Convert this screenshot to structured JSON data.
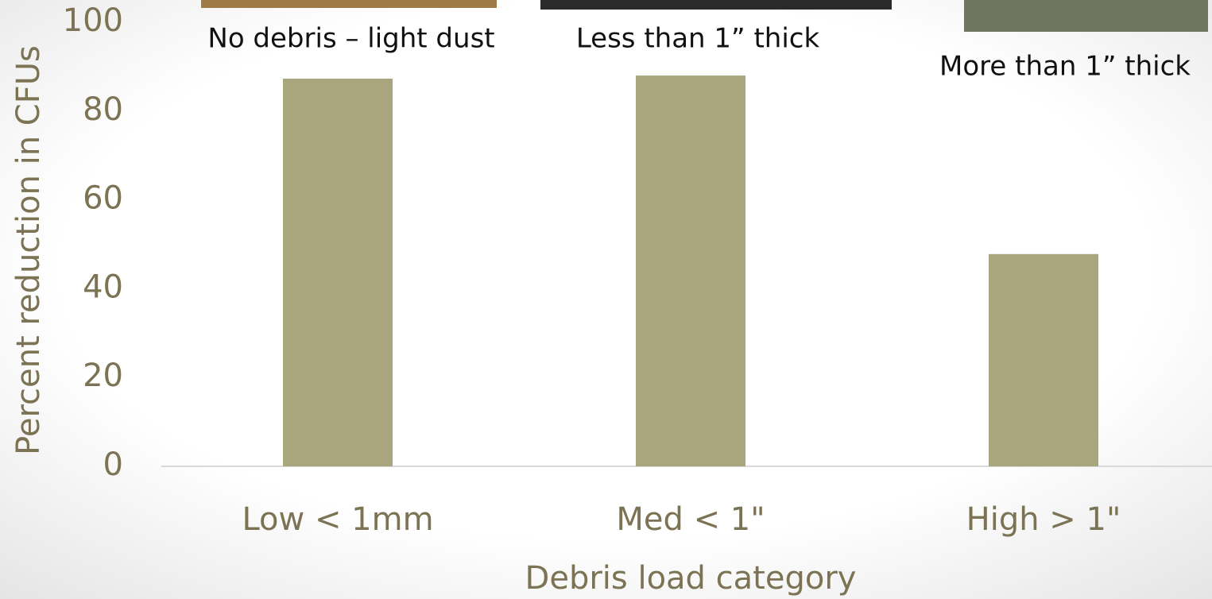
{
  "chart_data": {
    "type": "bar",
    "categories": [
      "Low < 1mm",
      "Med < 1\"",
      "High > 1\""
    ],
    "values": [
      87.3,
      88.0,
      47.8
    ],
    "color": "#a9a57c",
    "ylim": [
      0,
      100
    ],
    "yticks": [
      0,
      20,
      40,
      60,
      80,
      100
    ],
    "x_label": "Debris load category",
    "y_label": "Percent reduction in CFUs",
    "annotations": [
      "No debris – light dust",
      "Less than 1” thick",
      "More than 1” thick"
    ]
  }
}
